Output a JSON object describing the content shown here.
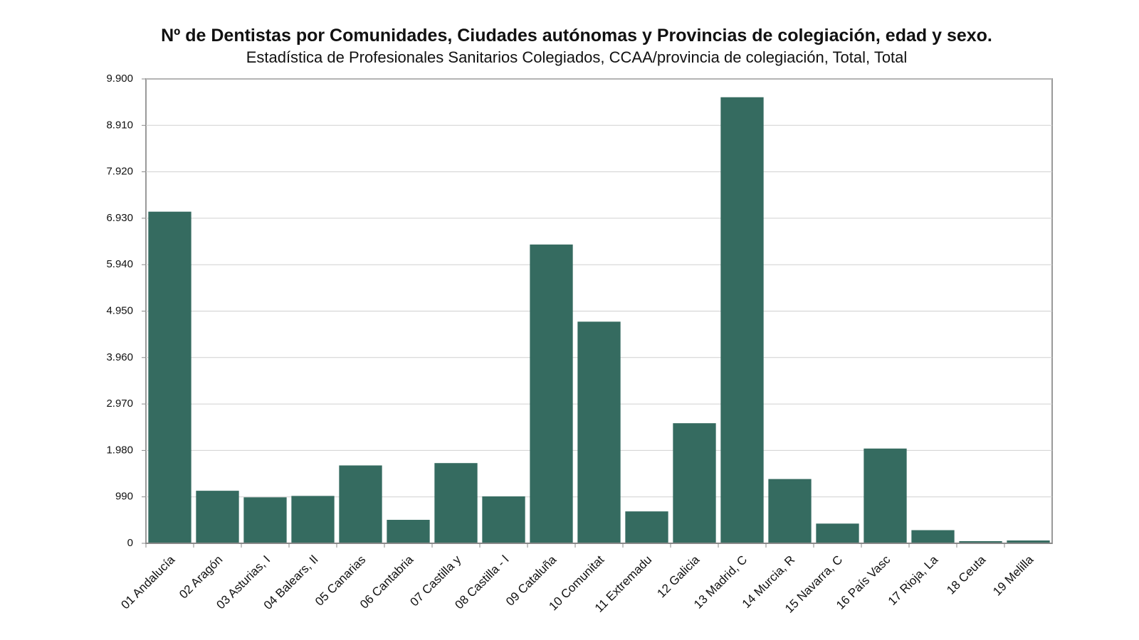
{
  "chart_data": {
    "type": "bar",
    "title": "Nº de Dentistas por Comunidades, Ciudades autónomas y Provincias de colegiación, edad y sexo.",
    "subtitle": "Estadística de Profesionales Sanitarios Colegiados, CCAA/provincia de colegiación, Total, Total",
    "categories": [
      "01 Andalucía",
      "02 Aragón",
      "03 Asturias, I",
      "04 Balears, Il",
      "05 Canarias",
      "06 Cantabria",
      "07 Castilla y",
      "08 Castilla - l",
      "09 Cataluña",
      "10 Comunitat",
      "11 Extremadu",
      "12 Galicia",
      "13 Madrid, C",
      "14 Murcia, R",
      "15 Navarra, C",
      "16 País Vasc",
      "17 Rioja, La",
      "18 Ceuta",
      "19 Melilla"
    ],
    "values": [
      7070,
      1120,
      980,
      1010,
      1660,
      500,
      1710,
      1000,
      6370,
      4725,
      680,
      2560,
      9510,
      1370,
      420,
      2020,
      280,
      45,
      60
    ],
    "color": "#356b60",
    "ylim": [
      0,
      9900
    ],
    "yticks": [
      0,
      990,
      {
        "value": 1980,
        "label": "1.980"
      },
      {
        "value": 2970,
        "label": "2.970"
      },
      {
        "value": 3960,
        "label": "3.960"
      },
      {
        "value": 4950,
        "label": "4.950"
      },
      {
        "value": 5940,
        "label": "5.940"
      },
      {
        "value": 6930,
        "label": "6.930"
      },
      {
        "value": 7920,
        "label": "7.920"
      },
      {
        "value": 8910,
        "label": "8.910"
      },
      {
        "value": 9900,
        "label": "9.900"
      }
    ],
    "grid": true
  }
}
